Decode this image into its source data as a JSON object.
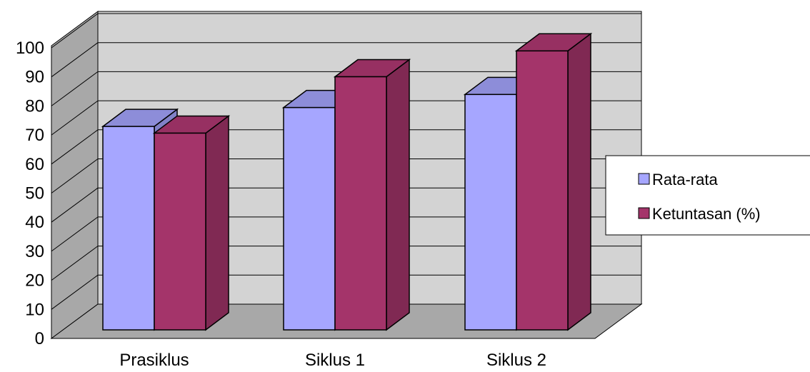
{
  "chart_data": {
    "type": "bar",
    "categories": [
      "Prasiklus",
      "Siklus 1",
      "Siklus 2"
    ],
    "series": [
      {
        "name": "Rata-rata",
        "values": [
          70,
          76.5,
          81
        ],
        "color": "#a6a6ff"
      },
      {
        "name": "Ketuntasan (%)",
        "values": [
          67.7,
          87.1,
          96
        ],
        "color": "#a4346a"
      }
    ],
    "ylim": [
      0,
      100
    ],
    "yticks": [
      0,
      10,
      20,
      30,
      40,
      50,
      60,
      70,
      80,
      90,
      100
    ],
    "grid": true,
    "legend": "right",
    "style": "3d-clustered-column"
  }
}
